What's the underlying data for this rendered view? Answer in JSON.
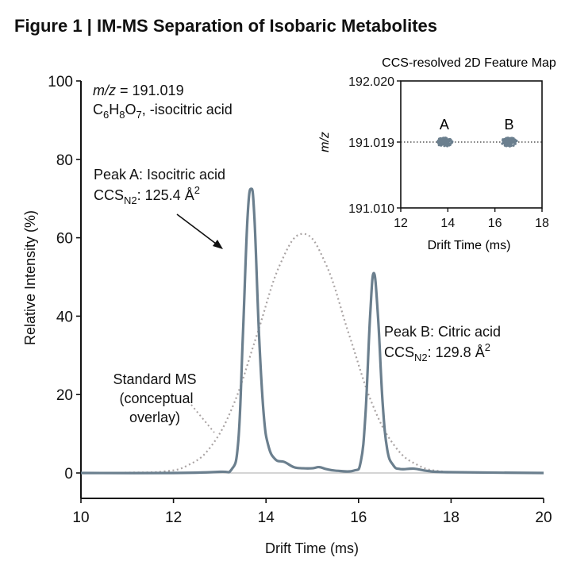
{
  "title": "Figure 1 | IM-MS Separation of Isobaric Metabolites",
  "colors": {
    "main_trace": "#6b7f8e",
    "overlay": "#a9a3a3",
    "baseline": "#bbbbbb",
    "axis": "#111111"
  },
  "chart_data": [
    {
      "type": "line",
      "xlabel": "Drift Time (ms)",
      "ylabel": "Relative Intensity (%)",
      "xlim": [
        10,
        20
      ],
      "ylim": [
        -6.5,
        100
      ],
      "xticks": [
        "10",
        "12",
        "14",
        "16",
        "18",
        "20"
      ],
      "yticks": [
        "0",
        "20",
        "40",
        "60",
        "80",
        "100"
      ],
      "grid": false,
      "series": [
        {
          "style": "solid",
          "x": [
            10,
            12,
            13,
            13.25,
            13.4,
            13.5,
            13.6,
            13.68,
            13.75,
            13.85,
            13.95,
            14.05,
            14.2,
            14.4,
            14.6,
            14.8,
            15.0,
            15.15,
            15.3,
            15.5,
            15.9,
            16.05,
            16.15,
            16.25,
            16.33,
            16.42,
            16.52,
            16.62,
            16.75,
            16.9,
            17.2,
            17.5,
            18,
            20
          ],
          "y": [
            0,
            0,
            0.3,
            0.8,
            8,
            35,
            65,
            72.5,
            65,
            35,
            15,
            7,
            3.5,
            2.8,
            1.5,
            1.2,
            1.2,
            1.5,
            1,
            0.6,
            0.6,
            3,
            15,
            40,
            51,
            40,
            18,
            6,
            2,
            1,
            1.1,
            0.5,
            0.2,
            0
          ]
        },
        {
          "style": "dotted",
          "x": [
            10,
            11,
            11.8,
            12.3,
            12.8,
            13.3,
            13.8,
            14.3,
            14.8,
            15.3,
            15.8,
            16.3,
            16.8,
            17.3,
            17.8,
            18.5,
            20
          ],
          "y": [
            0,
            0.1,
            0.4,
            1.9,
            6.6,
            17.5,
            35.1,
            53.1,
            61,
            53.1,
            35.1,
            17.5,
            6.6,
            1.9,
            0.4,
            0.1,
            0
          ]
        }
      ],
      "annotations": {
        "mz_prefix": "m/z",
        "mz_value": " = 191.019",
        "formula": {
          "c": "C",
          "c_n": "6",
          "h": "H",
          "h_n": "8",
          "o": "O",
          "o_n": "7",
          "suffix": ", -isocitric acid"
        },
        "peak_a": {
          "label": "Peak A: Isocitric acid",
          "ccs": "CCS",
          "sub": "N2",
          "value": ": 125.4 Å",
          "sup": "2",
          "x": 13.68,
          "y": 72.5
        },
        "peak_b": {
          "label": "Peak B: Citric acid",
          "ccs": "CCS",
          "sub": "N2",
          "value": ": 129.8 Å",
          "sup": "2",
          "x": 16.33,
          "y": 51
        },
        "overlay": [
          "Standard MS",
          "(conceptual",
          "overlay)"
        ]
      }
    },
    {
      "type": "scatter",
      "title": "CCS-resolved 2D Feature Map",
      "xlabel": "Drift Time (ms)",
      "ylabel": "m/z",
      "xlim": [
        12,
        18
      ],
      "xticks": [
        "12",
        "14",
        "16",
        "18"
      ],
      "yticks": [
        "191.010",
        "191.019",
        "192.020"
      ],
      "reference_line": 191.019,
      "clusters": [
        {
          "label": "A",
          "x": 13.85,
          "y": 191.019
        },
        {
          "label": "B",
          "x": 16.6,
          "y": 191.019
        }
      ]
    }
  ]
}
